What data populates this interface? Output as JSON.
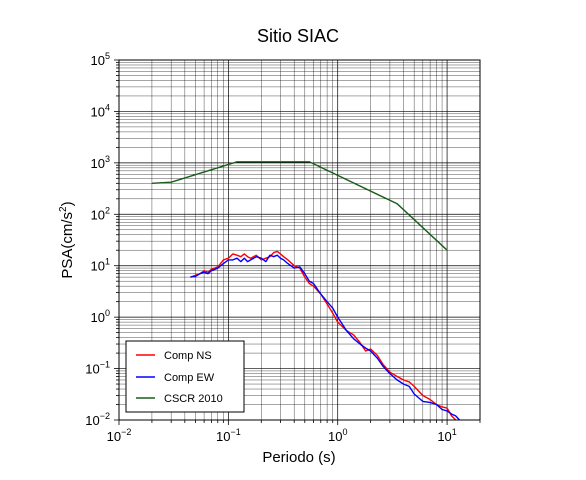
{
  "chart_data": {
    "type": "line",
    "title": "Sitio SIAC",
    "xlabel": "Periodo (s)",
    "ylabel": {
      "base": "PSA(cm/s",
      "sup": "2",
      "tail": ")"
    },
    "xscale": "log",
    "yscale": "log",
    "xlim": [
      0.01,
      20
    ],
    "ylim": [
      0.01,
      100000
    ],
    "grid": true,
    "legend_position": "bottom-left",
    "x_ticks": [
      {
        "base": "10",
        "exp": "−2",
        "value": 0.01
      },
      {
        "base": "10",
        "exp": "−1",
        "value": 0.1
      },
      {
        "base": "10",
        "exp": "0",
        "value": 1
      },
      {
        "base": "10",
        "exp": "1",
        "value": 10
      }
    ],
    "y_ticks": [
      {
        "base": "10",
        "exp": "−2",
        "value": 0.01
      },
      {
        "base": "10",
        "exp": "−1",
        "value": 0.1
      },
      {
        "base": "10",
        "exp": "0",
        "value": 1
      },
      {
        "base": "10",
        "exp": "1",
        "value": 10
      },
      {
        "base": "10",
        "exp": "2",
        "value": 100
      },
      {
        "base": "10",
        "exp": "3",
        "value": 1000
      },
      {
        "base": "10",
        "exp": "4",
        "value": 10000
      },
      {
        "base": "10",
        "exp": "5",
        "value": 100000
      }
    ],
    "series": [
      {
        "name": "Comp NS",
        "color": "#ff0000",
        "x": [
          0.045,
          0.05,
          0.055,
          0.06,
          0.065,
          0.07,
          0.08,
          0.09,
          0.1,
          0.11,
          0.12,
          0.13,
          0.14,
          0.15,
          0.16,
          0.18,
          0.2,
          0.22,
          0.24,
          0.26,
          0.28,
          0.3,
          0.32,
          0.35,
          0.4,
          0.45,
          0.5,
          0.55,
          0.6,
          0.7,
          0.8,
          0.9,
          1.0,
          1.2,
          1.4,
          1.6,
          1.8,
          2.0,
          2.3,
          2.6,
          3.0,
          3.5,
          4.0,
          4.5,
          5.0,
          6.0,
          7.0,
          8.0,
          9.0,
          10.0,
          11.0,
          12.0
        ],
        "y": [
          6.0,
          6.5,
          7.0,
          8.0,
          7.5,
          8.5,
          9.5,
          13,
          14,
          17,
          16,
          15,
          17,
          15,
          14,
          16,
          13,
          14,
          15,
          18,
          19,
          17,
          15,
          13,
          10,
          9.0,
          6.0,
          4.5,
          4.0,
          2.8,
          1.8,
          1.2,
          0.8,
          0.55,
          0.45,
          0.32,
          0.22,
          0.24,
          0.18,
          0.12,
          0.085,
          0.07,
          0.06,
          0.055,
          0.045,
          0.03,
          0.025,
          0.02,
          0.018,
          0.017,
          0.012,
          0.01
        ]
      },
      {
        "name": "Comp EW",
        "color": "#0000ff",
        "x": [
          0.045,
          0.05,
          0.055,
          0.06,
          0.065,
          0.07,
          0.08,
          0.09,
          0.1,
          0.11,
          0.12,
          0.13,
          0.14,
          0.15,
          0.16,
          0.18,
          0.2,
          0.22,
          0.24,
          0.26,
          0.28,
          0.3,
          0.32,
          0.35,
          0.4,
          0.45,
          0.5,
          0.55,
          0.6,
          0.7,
          0.8,
          0.9,
          1.0,
          1.2,
          1.4,
          1.6,
          1.8,
          2.0,
          2.3,
          2.6,
          3.0,
          3.5,
          4.0,
          4.5,
          5.0,
          6.0,
          7.0,
          8.0,
          9.0,
          10.0,
          11.0,
          12.0,
          13.0
        ],
        "y": [
          6.0,
          6.2,
          7.0,
          7.5,
          7.0,
          8.0,
          9.0,
          11,
          13,
          13,
          14,
          12,
          14,
          12,
          13,
          15,
          14,
          12,
          16,
          15,
          16,
          14,
          13,
          11,
          9.0,
          9.5,
          7.0,
          5.0,
          4.5,
          2.8,
          2.0,
          1.5,
          1.0,
          0.55,
          0.38,
          0.3,
          0.25,
          0.22,
          0.16,
          0.11,
          0.08,
          0.06,
          0.05,
          0.045,
          0.032,
          0.023,
          0.022,
          0.02,
          0.016,
          0.015,
          0.013,
          0.012,
          0.01
        ]
      },
      {
        "name": "CSCR 2010",
        "color": "#1a5e1a",
        "x": [
          0.02,
          0.03,
          0.12,
          0.55,
          3.5,
          10.0
        ],
        "y": [
          400,
          420,
          1050,
          1050,
          160,
          20
        ]
      }
    ]
  }
}
